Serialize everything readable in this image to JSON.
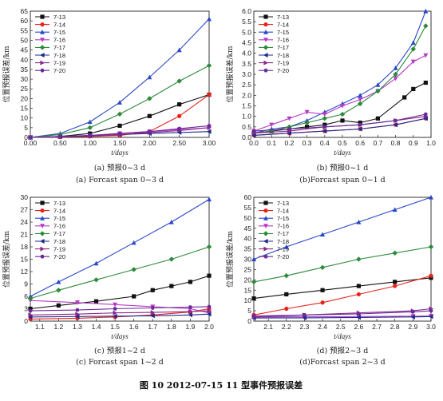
{
  "figure_caption": "图 10   2012-07-15 11 型事件预报误差",
  "series_colors": {
    "7-13": "#111111",
    "7-14": "#e8231a",
    "7-15": "#2a47c8",
    "7-16": "#b63cc8",
    "7-17": "#2c8a3a",
    "7-18": "#1f2a8f",
    "7-19": "#8a2a8a",
    "7-20": "#6a2a9a"
  },
  "chart_data": [
    {
      "type": "line",
      "caption_cn": "(a) 预报0~3 d",
      "caption_en": "(a) Forcast span 0~3 d",
      "xlabel": "t/days",
      "ylabel": "位置预报误差/km",
      "xlim": [
        0,
        3
      ],
      "ylim": [
        0,
        65
      ],
      "xticks": [
        "0.00",
        "0.50",
        "1.00",
        "1.50",
        "2.00",
        "2.50",
        "3.00"
      ],
      "yticks": [
        "0",
        "5",
        "10",
        "15",
        "20",
        "25",
        "30",
        "35",
        "40",
        "45",
        "50",
        "55",
        "60",
        "65"
      ],
      "legend": "top-left",
      "series": [
        {
          "name": "7-13",
          "marker": "square",
          "x": [
            0,
            0.5,
            1,
            1.5,
            2,
            2.5,
            3
          ],
          "y": [
            0,
            0.5,
            2,
            6,
            11,
            17,
            22
          ]
        },
        {
          "name": "7-14",
          "marker": "circle",
          "x": [
            0,
            0.5,
            1,
            1.5,
            2,
            2.5,
            3
          ],
          "y": [
            0,
            0.2,
            0.5,
            1,
            3,
            11,
            22
          ]
        },
        {
          "name": "7-15",
          "marker": "triangle-up",
          "x": [
            0,
            0.5,
            1,
            1.5,
            2,
            2.5,
            3
          ],
          "y": [
            0,
            2,
            8,
            18,
            31,
            45,
            61
          ]
        },
        {
          "name": "7-16",
          "marker": "triangle-down",
          "x": [
            0,
            0.5,
            1,
            1.5,
            2,
            2.5,
            3
          ],
          "y": [
            0,
            0.5,
            1,
            2,
            3,
            4,
            5
          ]
        },
        {
          "name": "7-17",
          "marker": "diamond",
          "x": [
            0,
            0.5,
            1,
            1.5,
            2,
            2.5,
            3
          ],
          "y": [
            0,
            1.5,
            5,
            12,
            20,
            29,
            37
          ]
        },
        {
          "name": "7-18",
          "marker": "triangle-left",
          "x": [
            0,
            0.5,
            1,
            1.5,
            2,
            2.5,
            3
          ],
          "y": [
            0,
            0.3,
            0.8,
            1.5,
            2,
            2.5,
            3
          ]
        },
        {
          "name": "7-19",
          "marker": "triangle-right",
          "x": [
            0,
            0.5,
            1,
            1.5,
            2,
            2.5,
            3
          ],
          "y": [
            0,
            0.3,
            0.8,
            1.5,
            2.5,
            3.5,
            5
          ]
        },
        {
          "name": "7-20",
          "marker": "hexagon",
          "x": [
            0,
            0.5,
            1,
            1.5,
            2,
            2.5,
            3
          ],
          "y": [
            0,
            0.5,
            1,
            2,
            3,
            4.5,
            6
          ]
        }
      ]
    },
    {
      "type": "line",
      "caption_cn": "(b) 预报0~1 d",
      "caption_en": "(b)Forcast span 0~1 d",
      "xlabel": "t/days",
      "ylabel": "位置预报误差/km",
      "xlim": [
        0,
        1
      ],
      "ylim": [
        0,
        6
      ],
      "xticks": [
        "0.0",
        "0.1",
        "0.2",
        "0.3",
        "0.4",
        "0.5",
        "0.6",
        "0.7",
        "0.8",
        "0.9",
        "1.0"
      ],
      "yticks": [
        "0.0",
        "0.5",
        "1.0",
        "1.5",
        "2.0",
        "2.5",
        "3.0",
        "3.5",
        "4.0",
        "4.5",
        "5.0",
        "5.5",
        "6.0"
      ],
      "legend": "top-left",
      "series": [
        {
          "name": "7-13",
          "marker": "square",
          "x": [
            0,
            0.1,
            0.2,
            0.3,
            0.4,
            0.5,
            0.6,
            0.7,
            0.85,
            0.9,
            0.97
          ],
          "y": [
            0.2,
            0.3,
            0.4,
            0.5,
            0.6,
            0.8,
            0.7,
            0.9,
            1.9,
            2.3,
            2.6
          ]
        },
        {
          "name": "7-14",
          "marker": "circle",
          "x": [
            0,
            0.2,
            0.4,
            0.6,
            0.8,
            0.97
          ],
          "y": [
            0.1,
            0.2,
            0.3,
            0.4,
            0.6,
            0.9
          ]
        },
        {
          "name": "7-15",
          "marker": "triangle-up",
          "x": [
            0,
            0.1,
            0.2,
            0.3,
            0.4,
            0.5,
            0.6,
            0.7,
            0.8,
            0.9,
            0.97
          ],
          "y": [
            0.2,
            0.4,
            0.5,
            0.8,
            1.2,
            1.6,
            2,
            2.5,
            3.3,
            4.5,
            6
          ]
        },
        {
          "name": "7-16",
          "marker": "triangle-down",
          "x": [
            0,
            0.1,
            0.2,
            0.3,
            0.4,
            0.5,
            0.6,
            0.7,
            0.8,
            0.9,
            0.97
          ],
          "y": [
            0.3,
            0.6,
            0.9,
            1.2,
            1.1,
            1.5,
            1.8,
            2.2,
            2.8,
            3.6,
            3.9
          ]
        },
        {
          "name": "7-17",
          "marker": "diamond",
          "x": [
            0,
            0.1,
            0.2,
            0.3,
            0.4,
            0.5,
            0.6,
            0.7,
            0.8,
            0.9,
            0.97
          ],
          "y": [
            0.2,
            0.3,
            0.5,
            0.7,
            0.9,
            1.1,
            1.6,
            2.2,
            3,
            4.2,
            5.3
          ]
        },
        {
          "name": "7-18",
          "marker": "triangle-left",
          "x": [
            0,
            0.2,
            0.4,
            0.6,
            0.8,
            0.97
          ],
          "y": [
            0.1,
            0.2,
            0.3,
            0.4,
            0.6,
            0.9
          ]
        },
        {
          "name": "7-19",
          "marker": "triangle-right",
          "x": [
            0,
            0.2,
            0.4,
            0.6,
            0.8,
            0.97
          ],
          "y": [
            0.2,
            0.3,
            0.5,
            0.6,
            0.8,
            1
          ]
        },
        {
          "name": "7-20",
          "marker": "hexagon",
          "x": [
            0,
            0.2,
            0.4,
            0.6,
            0.8,
            0.97
          ],
          "y": [
            0.3,
            0.4,
            0.5,
            0.6,
            0.8,
            1.1
          ]
        }
      ]
    },
    {
      "type": "line",
      "caption_cn": "(c) 预报1~2 d",
      "caption_en": "(c) Forcast span 1~2 d",
      "xlabel": "t/days",
      "ylabel": "位置预报误差/km",
      "xlim": [
        1.05,
        2.0
      ],
      "ylim": [
        0,
        30
      ],
      "xticks": [
        "1.1",
        "1.2",
        "1.3",
        "1.4",
        "1.5",
        "1.6",
        "1.7",
        "1.8",
        "1.9",
        "2.0"
      ],
      "yticks": [
        "0",
        "3",
        "6",
        "9",
        "12",
        "15",
        "18",
        "21",
        "24",
        "27",
        "30"
      ],
      "legend": "top-left",
      "series": [
        {
          "name": "7-13",
          "marker": "square",
          "x": [
            1.05,
            1.2,
            1.4,
            1.6,
            1.7,
            1.8,
            1.9,
            2.0
          ],
          "y": [
            3,
            3.8,
            4.8,
            6,
            7.5,
            8.5,
            9.5,
            11
          ]
        },
        {
          "name": "7-14",
          "marker": "circle",
          "x": [
            1.05,
            1.3,
            1.5,
            1.7,
            1.9,
            2.0
          ],
          "y": [
            0.5,
            0.7,
            1,
            1.5,
            2.2,
            3
          ]
        },
        {
          "name": "7-15",
          "marker": "triangle-up",
          "x": [
            1.05,
            1.2,
            1.4,
            1.6,
            1.8,
            2.0
          ],
          "y": [
            6,
            9.5,
            14,
            19,
            24,
            29.5
          ]
        },
        {
          "name": "7-16",
          "marker": "triangle-down",
          "x": [
            1.05,
            1.3,
            1.5,
            1.7,
            1.9,
            2.0
          ],
          "y": [
            5,
            4.5,
            4,
            3.5,
            3,
            2
          ]
        },
        {
          "name": "7-17",
          "marker": "diamond",
          "x": [
            1.05,
            1.2,
            1.4,
            1.6,
            1.8,
            2.0
          ],
          "y": [
            5.5,
            7.5,
            10,
            12.5,
            15,
            18
          ]
        },
        {
          "name": "7-18",
          "marker": "triangle-left",
          "x": [
            1.05,
            1.3,
            1.5,
            1.7,
            1.9,
            2.0
          ],
          "y": [
            1,
            1.1,
            1.2,
            1.3,
            1.5,
            1.7
          ]
        },
        {
          "name": "7-19",
          "marker": "triangle-right",
          "x": [
            1.05,
            1.3,
            1.5,
            1.7,
            1.9,
            2.0
          ],
          "y": [
            1.5,
            1.7,
            2,
            2.1,
            2.3,
            2.5
          ]
        },
        {
          "name": "7-20",
          "marker": "hexagon",
          "x": [
            1.05,
            1.3,
            1.5,
            1.7,
            1.9,
            2.0
          ],
          "y": [
            2.5,
            2.7,
            3,
            3.2,
            3.4,
            3.5
          ]
        }
      ]
    },
    {
      "type": "line",
      "caption_cn": "(d) 预报2~3 d",
      "caption_en": "(d)Forcast span 2~3 d",
      "xlabel": "t/days",
      "ylabel": "位置预报误差/km",
      "xlim": [
        2.02,
        3.0
      ],
      "ylim": [
        0,
        60
      ],
      "xticks": [
        "2.1",
        "2.2",
        "2.3",
        "2.4",
        "2.5",
        "2.6",
        "2.7",
        "2.8",
        "2.9",
        "3.0"
      ],
      "yticks": [
        "0",
        "5",
        "10",
        "15",
        "20",
        "25",
        "30",
        "35",
        "40",
        "45",
        "50",
        "55",
        "60"
      ],
      "legend": "top-left",
      "series": [
        {
          "name": "7-13",
          "marker": "square",
          "x": [
            2.02,
            2.2,
            2.4,
            2.6,
            2.8,
            3.0
          ],
          "y": [
            11,
            13,
            15,
            17,
            19,
            21
          ]
        },
        {
          "name": "7-14",
          "marker": "circle",
          "x": [
            2.02,
            2.2,
            2.4,
            2.6,
            2.8,
            3.0
          ],
          "y": [
            3,
            6,
            9,
            13,
            17,
            22
          ]
        },
        {
          "name": "7-15",
          "marker": "triangle-up",
          "x": [
            2.02,
            2.2,
            2.4,
            2.6,
            2.8,
            3.0
          ],
          "y": [
            30,
            36,
            42,
            48,
            54,
            60
          ]
        },
        {
          "name": "7-16",
          "marker": "triangle-down",
          "x": [
            2.02,
            2.3,
            2.6,
            2.9,
            3.0
          ],
          "y": [
            2,
            2.1,
            2.2,
            2.4,
            2.5
          ]
        },
        {
          "name": "7-17",
          "marker": "diamond",
          "x": [
            2.02,
            2.2,
            2.4,
            2.6,
            2.8,
            3.0
          ],
          "y": [
            19,
            22,
            26,
            30,
            33,
            36
          ]
        },
        {
          "name": "7-18",
          "marker": "triangle-left",
          "x": [
            2.02,
            2.3,
            2.6,
            2.9,
            3.0
          ],
          "y": [
            1.5,
            1.6,
            1.8,
            2,
            2.2
          ]
        },
        {
          "name": "7-19",
          "marker": "triangle-right",
          "x": [
            2.02,
            2.3,
            2.6,
            2.9,
            3.0
          ],
          "y": [
            2,
            3,
            4,
            5,
            6
          ]
        },
        {
          "name": "7-20",
          "marker": "hexagon",
          "x": [
            2.02,
            2.3,
            2.6,
            2.9,
            3.0
          ],
          "y": [
            2.5,
            3,
            3.5,
            4.5,
            5
          ]
        }
      ]
    }
  ]
}
